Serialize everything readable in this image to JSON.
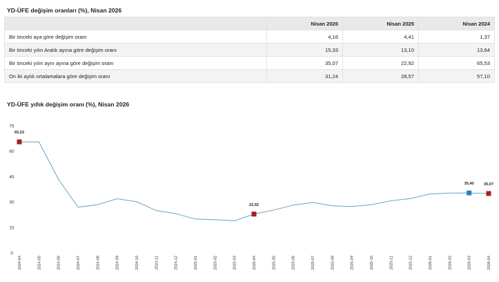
{
  "table": {
    "title": "YD-ÜFE değişim oranları (%), Nisan 2026",
    "columns": [
      "",
      "Nisan 2026",
      "Nisan 2025",
      "Nisan 2024"
    ],
    "rows": [
      {
        "label": "Bir önceki aya göre değişim oranı",
        "values": [
          "4,16",
          "4,41",
          "1,37"
        ]
      },
      {
        "label": "Bir önceki yılın Aralık ayına göre değişim oranı",
        "values": [
          "15,33",
          "13,10",
          "13,64"
        ]
      },
      {
        "label": "Bir önceki yılın aynı ayına göre değişim oranı",
        "values": [
          "35,07",
          "22,92",
          "65,53"
        ]
      },
      {
        "label": "On iki aylık ortalamalara göre değişim oranı",
        "values": [
          "31,24",
          "28,57",
          "57,10"
        ]
      }
    ]
  },
  "chart_data": {
    "type": "line",
    "title": "YD-ÜFE yıllık değişim oranı (%), Nisan 2026",
    "xlabel": "",
    "ylabel": "",
    "ylim": [
      0,
      75
    ],
    "yticks": [
      0,
      15,
      30,
      45,
      60,
      75
    ],
    "grid": false,
    "x": [
      "2024-04",
      "2024-05",
      "2024-06",
      "2024-07",
      "2024-08",
      "2024-09",
      "2024-10",
      "2024-11",
      "2024-12",
      "2025-01",
      "2025-02",
      "2025-03",
      "2025-04",
      "2025-05",
      "2025-06",
      "2025-07",
      "2025-08",
      "2025-09",
      "2025-10",
      "2025-11",
      "2025-12",
      "2026-01",
      "2026-02",
      "2026-03",
      "2026-04"
    ],
    "series": [
      {
        "values": [
          65.53,
          65.5,
          43.5,
          27.0,
          28.5,
          32.0,
          30.2,
          25.0,
          23.2,
          20.0,
          19.6,
          19.0,
          22.92,
          25.3,
          28.2,
          29.8,
          27.8,
          27.4,
          28.5,
          30.8,
          32.1,
          34.8,
          35.3,
          35.4,
          35.07
        ],
        "color": "#6a9fbd"
      }
    ],
    "highlights": [
      {
        "index": 0,
        "label": "65,53",
        "color": "#a41f24"
      },
      {
        "index": 12,
        "label": "22,92",
        "color": "#a41f24"
      },
      {
        "index": 23,
        "label": "35,40",
        "color": "#2f7ec0"
      },
      {
        "index": 24,
        "label": "35,07",
        "color": "#a41f24"
      }
    ]
  }
}
